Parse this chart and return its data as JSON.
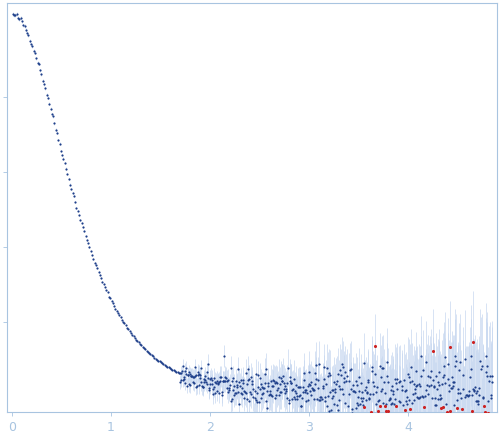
{
  "title": "",
  "xlabel": "",
  "ylabel": "",
  "xlim": [
    -0.05,
    4.9
  ],
  "xticks": [
    0,
    1,
    2,
    3,
    4
  ],
  "background_color": "#ffffff",
  "axes_color": "#a8c4e0",
  "tick_color": "#a8c4e0",
  "dot_color_blue": "#1e3f8a",
  "dot_color_red": "#cc2222",
  "error_color": "#c8d8f0",
  "figsize": [
    5.0,
    4.37
  ],
  "dpi": 100,
  "seed": 42,
  "q_min": 0.01,
  "q_transition": 1.7,
  "q_max": 4.85,
  "n_low": 130,
  "n_high": 560
}
